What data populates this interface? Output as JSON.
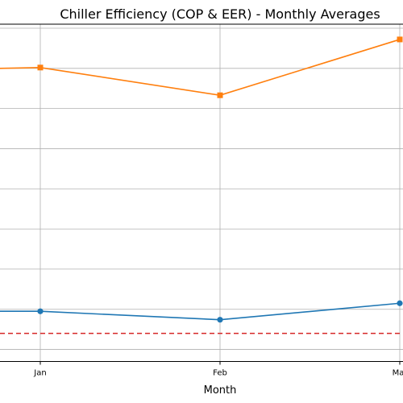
{
  "chart_data": {
    "type": "line",
    "title": "Chiller Efficiency (COP & EER) - Monthly Averages",
    "xlabel": "Month",
    "ylabel": "",
    "categories": [
      "Jan",
      "Feb",
      "Mar"
    ],
    "ylim": [
      2.2,
      10.6
    ],
    "y_gridlines": [
      2.5,
      3.5,
      4.5,
      5.5,
      6.5,
      7.5,
      8.5,
      9.5,
      10.5
    ],
    "grid": true,
    "series": [
      {
        "values": [
          3.45,
          3.24,
          3.65
        ],
        "color": "#1f77b4",
        "marker": "circle"
      },
      {
        "values": [
          9.52,
          8.83,
          10.22
        ],
        "color": "#ff7f0e",
        "marker": "square"
      }
    ],
    "reference_line": {
      "value": 2.9,
      "color": "#d62728",
      "style": "dashed"
    }
  }
}
